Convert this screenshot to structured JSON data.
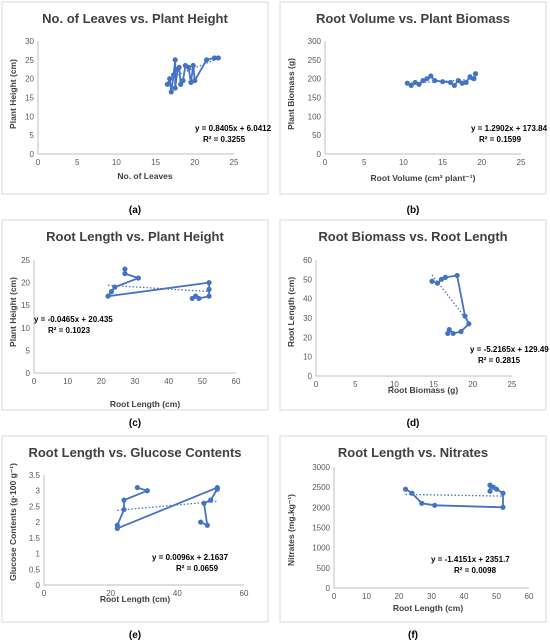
{
  "colors": {
    "series": "#4472c4",
    "axis": "#bfbfbf",
    "text": "#404040"
  },
  "panels": [
    {
      "label": "(a)"
    },
    {
      "label": "(b)"
    },
    {
      "label": "(c)"
    },
    {
      "label": "(d)"
    },
    {
      "label": "(e)"
    },
    {
      "label": "(f)"
    }
  ],
  "chart_data": [
    {
      "type": "scatter",
      "title": "No. of Leaves vs. Plant Height",
      "xlabel": "No. of Leaves",
      "ylabel": "Plant Height (cm)",
      "xlim": [
        0,
        25
      ],
      "ylim": [
        0,
        30
      ],
      "xticks": [
        0,
        5,
        10,
        15,
        20,
        25
      ],
      "yticks": [
        0,
        5,
        10,
        15,
        20,
        25,
        30
      ],
      "series_color": "#4472c4",
      "points": [
        [
          16.5,
          18.5
        ],
        [
          16.8,
          20
        ],
        [
          17,
          16.5
        ],
        [
          17.3,
          21
        ],
        [
          17.5,
          25
        ],
        [
          17.5,
          17.5
        ],
        [
          17.8,
          22.5
        ],
        [
          18,
          23
        ],
        [
          18.2,
          18.5
        ],
        [
          18.5,
          19.5
        ],
        [
          18.8,
          23.5
        ],
        [
          19.2,
          23
        ],
        [
          19.5,
          19
        ],
        [
          19.8,
          23.5
        ],
        [
          20,
          19.5
        ],
        [
          21.5,
          25
        ],
        [
          22.5,
          25.5
        ],
        [
          23,
          25.5
        ]
      ],
      "trendline": {
        "slope": 0.8405,
        "intercept": 6.0412,
        "x_range": [
          16.5,
          23
        ]
      },
      "equation": "y = 0.8405x + 6.0412",
      "r2": "R² = 0.3255"
    },
    {
      "type": "scatter",
      "title": "Root Volume vs. Plant Biomass",
      "xlabel": "Root Volume (cm³ plant⁻¹)",
      "ylabel": "Plant Biomass (g)",
      "xlim": [
        0,
        25
      ],
      "ylim": [
        0,
        300
      ],
      "xticks": [
        0,
        5,
        10,
        15,
        20,
        25
      ],
      "yticks": [
        0,
        50,
        100,
        150,
        200,
        250,
        300
      ],
      "series_color": "#4472c4",
      "points": [
        [
          10.5,
          188
        ],
        [
          11,
          182
        ],
        [
          11.5,
          190
        ],
        [
          12,
          185
        ],
        [
          12.5,
          195
        ],
        [
          13,
          200
        ],
        [
          13.5,
          207
        ],
        [
          14,
          195
        ],
        [
          15,
          192
        ],
        [
          16,
          190
        ],
        [
          16.5,
          182
        ],
        [
          17,
          195
        ],
        [
          17.5,
          188
        ],
        [
          18,
          190
        ],
        [
          18.5,
          205
        ],
        [
          19,
          200
        ],
        [
          19.2,
          213
        ]
      ],
      "trendline": {
        "slope": 1.2902,
        "intercept": 173.84,
        "x_range": [
          10.5,
          19.2
        ]
      },
      "equation": "y = 1.2902x + 173.84",
      "r2": "R² = 0.1599"
    },
    {
      "type": "scatter",
      "title": "Root Length vs. Plant Height",
      "xlabel": "Root Length  (cm)",
      "ylabel": "Plant Height (cm)",
      "xlim": [
        0,
        60
      ],
      "ylim": [
        0,
        25
      ],
      "xticks": [
        0,
        10,
        20,
        30,
        40,
        50,
        60
      ],
      "yticks": [
        0,
        5,
        10,
        15,
        20,
        25
      ],
      "series_color": "#4472c4",
      "points": [
        [
          27,
          23
        ],
        [
          27,
          22
        ],
        [
          31,
          21
        ],
        [
          24,
          19
        ],
        [
          23,
          18
        ],
        [
          22,
          17
        ],
        [
          52,
          20
        ],
        [
          52,
          18.5
        ],
        [
          52,
          17
        ],
        [
          49,
          16.5
        ],
        [
          48,
          17
        ],
        [
          47,
          16.5
        ]
      ],
      "trendline": {
        "slope": -0.0465,
        "intercept": 20.435,
        "x_range": [
          22,
          52
        ]
      },
      "equation": "y = -0.0465x + 20.435",
      "r2": "R² = 0.1023"
    },
    {
      "type": "scatter",
      "title": "Root Biomass vs. Root Length",
      "xlabel": "Root Biomass (g)",
      "ylabel": "Root Length (cm)",
      "xlim": [
        0,
        25
      ],
      "ylim": [
        0,
        60
      ],
      "xticks": [
        0,
        5,
        10,
        15,
        20,
        25
      ],
      "yticks": [
        0,
        10,
        20,
        30,
        40,
        50,
        60
      ],
      "series_color": "#4472c4",
      "points": [
        [
          14.8,
          49
        ],
        [
          15.5,
          48
        ],
        [
          16,
          50
        ],
        [
          16.5,
          51
        ],
        [
          18,
          52
        ],
        [
          19,
          31
        ],
        [
          19.5,
          27
        ],
        [
          18.5,
          23
        ],
        [
          17.5,
          22
        ],
        [
          17,
          24
        ],
        [
          16.8,
          22
        ]
      ],
      "trendline": {
        "slope": -5.2165,
        "intercept": 129.49,
        "x_range": [
          14.8,
          19.5
        ]
      },
      "equation": "y = -5.2165x + 129.49",
      "r2": "R² = 0.2815"
    },
    {
      "type": "scatter",
      "title": "Root Length vs. Glucose Contents",
      "xlabel": "Root Length (cm)",
      "ylabel": "Glucose Contents (g·100 g⁻¹)",
      "xlim": [
        0,
        60
      ],
      "ylim": [
        0,
        3.5
      ],
      "xticks": [
        0,
        20,
        40,
        60
      ],
      "yticks": [
        0,
        0.5,
        1,
        1.5,
        2,
        2.5,
        3,
        3.5
      ],
      "series_color": "#4472c4",
      "points": [
        [
          28,
          3.1
        ],
        [
          31,
          3
        ],
        [
          24,
          2.7
        ],
        [
          24,
          2.4
        ],
        [
          22,
          1.9
        ],
        [
          22,
          1.8
        ],
        [
          52,
          3.1
        ],
        [
          52,
          3.05
        ],
        [
          50,
          2.7
        ],
        [
          48,
          2.6
        ],
        [
          49,
          1.9
        ],
        [
          47,
          2
        ]
      ],
      "trendline": {
        "slope": 0.0096,
        "intercept": 2.1637,
        "x_range": [
          22,
          52
        ]
      },
      "equation": "y = 0.0096x + 2.1637",
      "r2": "R² = 0.0659"
    },
    {
      "type": "scatter",
      "title": "Root Length vs. Nitrates",
      "xlabel": "Root Length (cm)",
      "ylabel": "Nitrates (mg.kg⁻¹)",
      "xlim": [
        0,
        60
      ],
      "ylim": [
        0,
        3000
      ],
      "xticks": [
        0,
        10,
        20,
        30,
        40,
        50,
        60
      ],
      "yticks": [
        0,
        500,
        1000,
        1500,
        2000,
        2500,
        3000
      ],
      "series_color": "#4472c4",
      "points": [
        [
          22,
          2450
        ],
        [
          24,
          2350
        ],
        [
          27,
          2100
        ],
        [
          31,
          2050
        ],
        [
          52,
          2000
        ],
        [
          52,
          2350
        ],
        [
          50,
          2450
        ],
        [
          49,
          2500
        ],
        [
          48,
          2550
        ],
        [
          48,
          2400
        ]
      ],
      "trendline": {
        "slope": -1.4151,
        "intercept": 2351.7,
        "x_range": [
          22,
          52
        ]
      },
      "equation": "y = -1.4151x + 2351.7",
      "r2": "R² = 0.0098"
    }
  ]
}
